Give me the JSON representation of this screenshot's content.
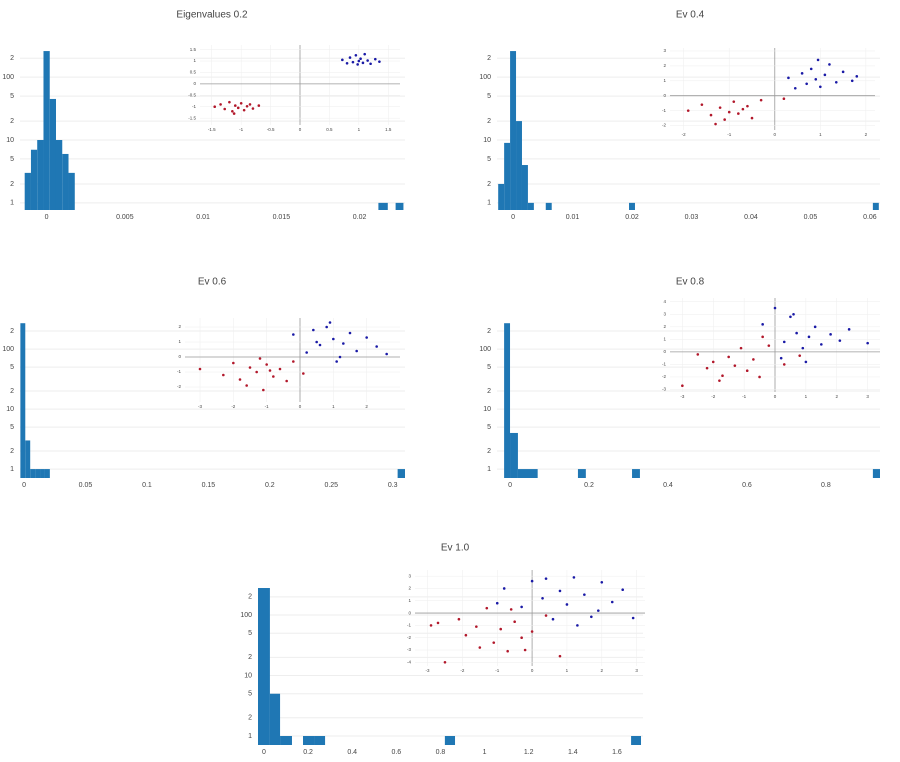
{
  "chart_data": [
    {
      "type": "histogram",
      "title": "Eigenvalues 0.2",
      "color": "#1f77b4",
      "log_y": true,
      "grid": true,
      "bins": [
        -0.0014,
        -0.001,
        -0.0006,
        -0.0002,
        0.0002,
        0.0006,
        0.001,
        0.0014,
        0.0018,
        0.0212,
        0.0218,
        0.0223,
        0.0228
      ],
      "counts": [
        3,
        7,
        10,
        260,
        45,
        10,
        6,
        3,
        0,
        1,
        0,
        1
      ],
      "xlim": [
        -0.0017,
        0.0229
      ],
      "xticks": [
        0,
        0.005,
        0.01,
        0.015,
        0.02
      ],
      "ylim": [
        0.77,
        390
      ],
      "yticks": [
        1,
        2,
        5,
        10,
        {
          "value": 20,
          "label": "2"
        },
        {
          "value": 50,
          "label": "5"
        },
        100,
        {
          "value": 200,
          "label": "2"
        }
      ],
      "inset": {
        "type": "scatter",
        "xlim": [
          -1.7,
          1.7
        ],
        "ylim": [
          -1.8,
          1.7
        ],
        "xticks": [
          -1.5,
          -1,
          -0.5,
          0,
          0.5,
          1,
          1.5
        ],
        "yticks": [
          -1.5,
          -1,
          -0.5,
          0,
          0.5,
          1,
          1.5
        ],
        "series": [
          {
            "color": "#1a1aa6",
            "x": [
              0.72,
              0.8,
              0.85,
              0.9,
              0.95,
              0.98,
              1.0,
              1.03,
              1.07,
              1.1,
              1.15,
              1.2,
              1.28,
              1.35
            ],
            "values": [
              1.05,
              0.9,
              1.15,
              0.95,
              1.25,
              0.85,
              1.0,
              1.1,
              0.92,
              1.3,
              1.02,
              0.88,
              1.08,
              0.97
            ]
          },
          {
            "color": "#b2182b",
            "x": [
              -1.45,
              -1.35,
              -1.28,
              -1.2,
              -1.15,
              -1.1,
              -1.05,
              -1.0,
              -0.95,
              -0.9,
              -0.85,
              -0.8,
              -0.7,
              -1.12
            ],
            "values": [
              -1.0,
              -0.9,
              -1.1,
              -0.8,
              -1.2,
              -0.95,
              -1.05,
              -0.85,
              -1.15,
              -0.98,
              -0.9,
              -1.08,
              -0.95,
              -1.3
            ]
          }
        ]
      }
    },
    {
      "type": "histogram",
      "title": "Ev 0.4",
      "color": "#1f77b4",
      "log_y": true,
      "grid": true,
      "bins": [
        -0.0025,
        -0.0015,
        -0.0005,
        0.0005,
        0.0015,
        0.0025,
        0.0035,
        0.0055,
        0.0065,
        0.0195,
        0.0205,
        0.0605,
        0.0615
      ],
      "counts": [
        2,
        9,
        260,
        20,
        4,
        1,
        0,
        1,
        0,
        1,
        0,
        1
      ],
      "xlim": [
        -0.0027,
        0.0617
      ],
      "xticks": [
        0,
        0.01,
        0.02,
        0.03,
        0.04,
        0.05,
        0.06
      ],
      "ylim": [
        0.77,
        390
      ],
      "yticks": [
        1,
        2,
        5,
        10,
        {
          "value": 20,
          "label": "2"
        },
        {
          "value": 50,
          "label": "5"
        },
        100,
        {
          "value": 200,
          "label": "2"
        }
      ],
      "inset": {
        "type": "scatter",
        "xlim": [
          -2.3,
          2.2
        ],
        "ylim": [
          -2.3,
          3.2
        ],
        "xticks": [
          -2,
          -1,
          0,
          1,
          2
        ],
        "yticks": [
          -2,
          -1,
          0,
          1,
          2,
          3
        ],
        "series": [
          {
            "color": "#1a1aa6",
            "x": [
              0.3,
              0.45,
              0.6,
              0.7,
              0.8,
              0.9,
              1.0,
              1.1,
              1.2,
              1.35,
              1.5,
              1.7,
              0.95,
              1.8
            ],
            "values": [
              1.2,
              0.5,
              1.5,
              0.8,
              1.8,
              1.1,
              0.6,
              1.4,
              2.1,
              0.9,
              1.6,
              1.0,
              2.4,
              1.3
            ]
          },
          {
            "color": "#b2182b",
            "x": [
              -1.9,
              -1.6,
              -1.4,
              -1.2,
              -1.1,
              -1.0,
              -0.9,
              -0.8,
              -0.6,
              -0.5,
              -0.3,
              -1.3,
              -0.7,
              0.2
            ],
            "values": [
              -1.0,
              -0.6,
              -1.3,
              -0.8,
              -1.6,
              -1.1,
              -0.4,
              -1.2,
              -0.7,
              -1.5,
              -0.3,
              -1.9,
              -0.9,
              -0.2
            ]
          }
        ]
      }
    },
    {
      "type": "histogram",
      "title": "Ev 0.6",
      "color": "#1f77b4",
      "log_y": true,
      "grid": true,
      "bins": [
        -0.003,
        0.001,
        0.005,
        0.009,
        0.013,
        0.017,
        0.021,
        0.304,
        0.31
      ],
      "counts": [
        270,
        3,
        1,
        1,
        1,
        1,
        0,
        1
      ],
      "xlim": [
        -0.0033,
        0.31
      ],
      "xticks": [
        0,
        0.05,
        0.1,
        0.15,
        0.2,
        0.25,
        0.3
      ],
      "ylim": [
        0.71,
        370
      ],
      "yticks": [
        1,
        2,
        5,
        10,
        {
          "value": 20,
          "label": "2"
        },
        {
          "value": 50,
          "label": "5"
        },
        100,
        {
          "value": 200,
          "label": "2"
        }
      ],
      "inset": {
        "type": "scatter",
        "xlim": [
          -3.45,
          3.0
        ],
        "ylim": [
          -3.0,
          2.6
        ],
        "xticks": [
          -3,
          -2,
          -1,
          0,
          1,
          2
        ],
        "yticks": [
          -2,
          -1,
          0,
          1,
          2
        ],
        "series": [
          {
            "color": "#1a1aa6",
            "x": [
              -0.2,
              0.2,
              0.4,
              0.6,
              0.8,
              1.0,
              1.1,
              1.3,
              1.5,
              1.7,
              2.0,
              2.3,
              2.6,
              0.9,
              0.5,
              1.2
            ],
            "values": [
              1.5,
              0.3,
              1.8,
              0.8,
              2.0,
              1.2,
              -0.3,
              0.9,
              1.6,
              0.4,
              1.3,
              0.7,
              0.2,
              2.3,
              1.0,
              0.0
            ]
          },
          {
            "color": "#b2182b",
            "x": [
              -3.0,
              -2.3,
              -2.0,
              -1.8,
              -1.5,
              -1.3,
              -1.1,
              -1.0,
              -0.8,
              -0.6,
              -0.4,
              -0.2,
              -1.6,
              -0.9,
              -1.2,
              0.1
            ],
            "values": [
              -0.8,
              -1.2,
              -0.4,
              -1.5,
              -0.7,
              -1.0,
              -2.2,
              -0.5,
              -1.3,
              -0.8,
              -1.6,
              -0.3,
              -1.9,
              -0.9,
              -0.1,
              -1.1
            ]
          }
        ]
      }
    },
    {
      "type": "histogram",
      "title": "Ev 0.8",
      "color": "#1f77b4",
      "log_y": true,
      "grid": true,
      "bins": [
        -0.015,
        0,
        0.02,
        0.07,
        0.172,
        0.192,
        0.309,
        0.329,
        0.919,
        0.937
      ],
      "counts": [
        270,
        4,
        1,
        0,
        1,
        0,
        1,
        0,
        1
      ],
      "xlim": [
        -0.033,
        0.937
      ],
      "xticks": [
        0,
        0.2,
        0.4,
        0.6,
        0.8
      ],
      "ylim": [
        0.71,
        370
      ],
      "yticks": [
        1,
        2,
        5,
        10,
        {
          "value": 20,
          "label": "2"
        },
        {
          "value": 50,
          "label": "5"
        },
        100,
        {
          "value": 200,
          "label": "2"
        }
      ],
      "inset": {
        "type": "scatter",
        "xlim": [
          -3.4,
          3.4
        ],
        "ylim": [
          -3.2,
          4.3
        ],
        "xticks": [
          -3,
          -2,
          -1,
          0,
          1,
          2,
          3
        ],
        "yticks": [
          -3,
          -2,
          -1,
          0,
          1,
          2,
          3,
          4
        ],
        "series": [
          {
            "color": "#1a1aa6",
            "x": [
              -0.4,
              0.0,
              0.3,
              0.5,
              0.7,
              0.9,
              1.1,
              1.3,
              1.5,
              1.8,
              2.1,
              2.4,
              3.0,
              0.2,
              0.6,
              1.0
            ],
            "values": [
              2.2,
              3.5,
              0.8,
              2.8,
              1.5,
              0.3,
              1.2,
              2.0,
              0.6,
              1.4,
              0.9,
              1.8,
              0.7,
              -0.5,
              3.0,
              -0.8
            ]
          },
          {
            "color": "#b2182b",
            "x": [
              -3.0,
              -2.5,
              -2.2,
              -2.0,
              -1.7,
              -1.5,
              -1.3,
              -1.1,
              -0.9,
              -0.7,
              -0.5,
              -0.2,
              0.3,
              0.8,
              -1.8,
              -0.4
            ],
            "values": [
              -2.7,
              -0.2,
              -1.3,
              -0.8,
              -1.9,
              -0.4,
              -1.1,
              0.3,
              -1.5,
              -0.6,
              -2.0,
              0.5,
              -1.0,
              -0.3,
              -2.3,
              1.2
            ]
          }
        ]
      }
    },
    {
      "type": "histogram",
      "title": "Ev 1.0",
      "color": "#1f77b4",
      "log_y": true,
      "grid": true,
      "bins": [
        -0.027,
        0.027,
        0.073,
        0.127,
        0.177,
        0.227,
        0.277,
        0.82,
        0.866,
        1.664,
        1.709
      ],
      "counts": [
        280,
        5,
        1,
        0,
        1,
        1,
        0,
        1,
        0,
        1
      ],
      "xlim": [
        -0.027,
        1.718
      ],
      "xticks": [
        0,
        0.2,
        0.4,
        0.6,
        0.8,
        1,
        1.2,
        1.4,
        1.6
      ],
      "ylim": [
        0.71,
        380
      ],
      "yticks": [
        1,
        2,
        5,
        10,
        {
          "value": 20,
          "label": "2"
        },
        {
          "value": 50,
          "label": "5"
        },
        100,
        {
          "value": 200,
          "label": "2"
        }
      ],
      "inset": {
        "type": "scatter",
        "xlim": [
          -3.36,
          3.24
        ],
        "ylim": [
          -4.3,
          3.5
        ],
        "xticks": [
          -3,
          -2,
          -1,
          0,
          1,
          2,
          3
        ],
        "yticks": [
          -4,
          -3,
          -2,
          -1,
          0,
          1,
          2,
          3
        ],
        "series": [
          {
            "color": "#1a1aa6",
            "x": [
              -0.8,
              -0.3,
              0.0,
              0.3,
              0.6,
              0.8,
              1.0,
              1.2,
              1.5,
              1.7,
              2.0,
              2.3,
              2.6,
              2.9,
              0.4,
              1.3,
              -1.0,
              1.9
            ],
            "values": [
              2.0,
              0.5,
              2.6,
              1.2,
              -0.5,
              1.8,
              0.7,
              2.9,
              1.5,
              -0.3,
              2.5,
              0.9,
              1.9,
              -0.4,
              2.8,
              -1.0,
              0.8,
              0.2
            ]
          },
          {
            "color": "#b2182b",
            "x": [
              -2.9,
              -2.5,
              -2.1,
              -1.9,
              -1.6,
              -1.3,
              -1.1,
              -0.9,
              -0.7,
              -0.5,
              -0.3,
              0.0,
              0.4,
              -1.5,
              -0.6,
              -2.7,
              0.8,
              -0.2
            ],
            "values": [
              -1.0,
              -4.0,
              -0.5,
              -1.8,
              -1.1,
              0.4,
              -2.4,
              -1.3,
              -3.1,
              -0.7,
              -2.0,
              -1.5,
              -0.2,
              -2.8,
              0.3,
              -0.8,
              -3.5,
              -3.0
            ]
          }
        ]
      }
    }
  ]
}
